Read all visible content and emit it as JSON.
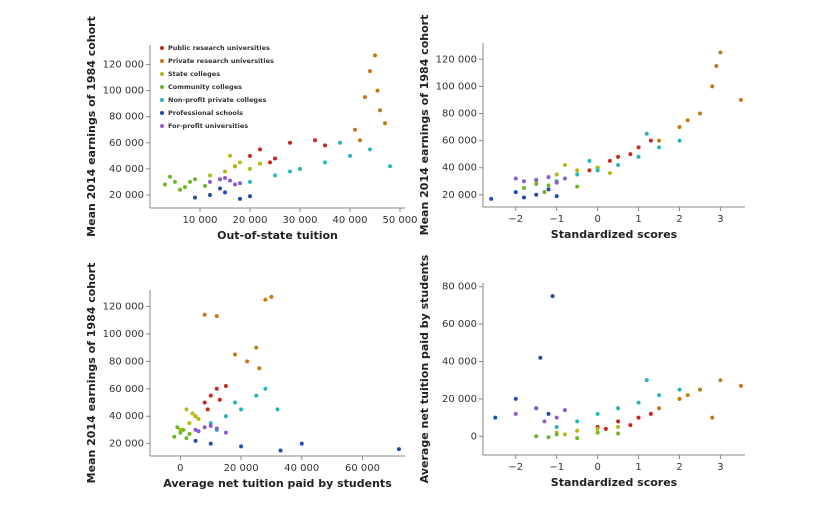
{
  "chart_data": [
    {
      "type": "scatter",
      "xlabel": "Out-of-state tuition",
      "ylabel": "Mean 2014 earnings of 1984 cohort",
      "legend": "top-left",
      "xlim": [
        0,
        51000
      ],
      "ylim": [
        10000,
        135000
      ],
      "xticks": [
        {
          "value": 10000,
          "label": "10 000"
        },
        {
          "value": 20000,
          "label": "20 000"
        },
        {
          "value": 30000,
          "label": "30 000"
        },
        {
          "value": 40000,
          "label": "40 000"
        },
        {
          "value": 50000,
          "label": "50 000"
        }
      ],
      "yticks": [
        {
          "value": 20000,
          "label": "20 000"
        },
        {
          "value": 40000,
          "label": "40 000"
        },
        {
          "value": 60000,
          "label": "60 000"
        },
        {
          "value": 80000,
          "label": "80 000"
        },
        {
          "value": 100000,
          "label": "100 000"
        },
        {
          "value": 120000,
          "label": "120 000"
        }
      ],
      "series": [
        {
          "name": "Public research universities",
          "color": "#c8281e",
          "x": [
            17000,
            20000,
            22000,
            25000,
            28000,
            33000,
            35000,
            24000
          ],
          "values": [
            42000,
            50000,
            55000,
            48000,
            60000,
            62000,
            58000,
            45000
          ]
        },
        {
          "name": "Private research universities",
          "color": "#c27a17",
          "x": [
            41000,
            43000,
            44000,
            45000,
            46000,
            47000,
            45500,
            42000
          ],
          "values": [
            70000,
            95000,
            115000,
            127000,
            85000,
            75000,
            100000,
            62000
          ]
        },
        {
          "name": "State colleges",
          "color": "#b8b814",
          "x": [
            12000,
            15000,
            17000,
            18000,
            20000,
            14000,
            22000,
            16000
          ],
          "values": [
            35000,
            38000,
            42000,
            45000,
            40000,
            32000,
            44000,
            50000
          ]
        },
        {
          "name": "Community colleges",
          "color": "#71b629",
          "x": [
            3000,
            5000,
            7000,
            9000,
            4000,
            11000,
            6000,
            8000
          ],
          "values": [
            28000,
            30000,
            26000,
            32000,
            34000,
            27000,
            24000,
            30000
          ]
        },
        {
          "name": "Non-profit private colleges",
          "color": "#2ab3b8",
          "x": [
            20000,
            25000,
            30000,
            35000,
            40000,
            44000,
            48000,
            28000,
            38000
          ],
          "values": [
            30000,
            35000,
            40000,
            45000,
            50000,
            55000,
            42000,
            38000,
            60000
          ]
        },
        {
          "name": "Professional schools",
          "color": "#2149b0",
          "x": [
            9000,
            12000,
            15000,
            18000,
            14000,
            20000
          ],
          "values": [
            18000,
            20000,
            22000,
            17000,
            25000,
            19000
          ]
        },
        {
          "name": "For-profit universities",
          "color": "#8c5bd2",
          "x": [
            12000,
            14000,
            16000,
            18000,
            15000,
            17000
          ],
          "values": [
            30000,
            32000,
            31000,
            29000,
            33000,
            28000
          ]
        }
      ]
    },
    {
      "type": "scatter",
      "xlabel": "Standardized scores",
      "ylabel": "Mean 2014 earnings of 1984 cohort",
      "xlim": [
        -2.8,
        3.6
      ],
      "ylim": [
        11000,
        132000
      ],
      "xticks": [
        {
          "value": -2,
          "label": "−2"
        },
        {
          "value": -1,
          "label": "−1"
        },
        0,
        1,
        2,
        3
      ],
      "yticks": [
        {
          "value": 20000,
          "label": "20 000"
        },
        {
          "value": 40000,
          "label": "40 000"
        },
        {
          "value": 60000,
          "label": "60 000"
        },
        {
          "value": 80000,
          "label": "80 000"
        },
        {
          "value": 100000,
          "label": "100 000"
        },
        {
          "value": 120000,
          "label": "120 000"
        }
      ],
      "series": [
        {
          "color": "#c8281e",
          "x": [
            0,
            0.5,
            1,
            0.8,
            1.3,
            0.3,
            -0.2
          ],
          "values": [
            40000,
            48000,
            55000,
            50000,
            60000,
            45000,
            38000
          ]
        },
        {
          "color": "#c27a17",
          "x": [
            1.5,
            2,
            2.5,
            2.8,
            3,
            3.5,
            2.2,
            2.9
          ],
          "values": [
            60000,
            70000,
            80000,
            100000,
            125000,
            90000,
            75000,
            115000
          ]
        },
        {
          "color": "#b8b814",
          "x": [
            -1.5,
            -1,
            -0.5,
            0,
            -0.8,
            0.3
          ],
          "values": [
            30000,
            35000,
            38000,
            40000,
            42000,
            36000
          ]
        },
        {
          "color": "#71b629",
          "x": [
            -1.8,
            -1.5,
            -1.2,
            -1,
            -0.5,
            -1.3
          ],
          "values": [
            25000,
            28000,
            27000,
            30000,
            26000,
            22000
          ]
        },
        {
          "color": "#2ab3b8",
          "x": [
            -1,
            -0.5,
            0,
            0.5,
            1,
            1.5,
            2,
            -0.2,
            1.2
          ],
          "values": [
            30000,
            35000,
            38000,
            42000,
            48000,
            55000,
            60000,
            45000,
            65000
          ]
        },
        {
          "color": "#2149b0",
          "x": [
            -2.6,
            -2,
            -1.8,
            -1.5,
            -1.2,
            -1
          ],
          "values": [
            17000,
            22000,
            18000,
            20000,
            24000,
            19000
          ]
        },
        {
          "color": "#8c5bd2",
          "x": [
            -2,
            -1.8,
            -1.5,
            -1.2,
            -1,
            -0.8
          ],
          "values": [
            32000,
            30000,
            31000,
            33000,
            29000,
            32000
          ]
        }
      ]
    },
    {
      "type": "scatter",
      "xlabel": "Average net tuition paid by students",
      "ylabel": "Mean 2014 earnings of 1984 cohort",
      "xlim": [
        -10000,
        74000
      ],
      "ylim": [
        11000,
        132000
      ],
      "xticks": [
        0,
        {
          "value": 20000,
          "label": "20 000"
        },
        {
          "value": 40000,
          "label": "40 000"
        },
        {
          "value": 60000,
          "label": "60 000"
        }
      ],
      "yticks": [
        {
          "value": 20000,
          "label": "20 000"
        },
        {
          "value": 40000,
          "label": "40 000"
        },
        {
          "value": 60000,
          "label": "60 000"
        },
        {
          "value": 80000,
          "label": "80 000"
        },
        {
          "value": 100000,
          "label": "100 000"
        },
        {
          "value": 120000,
          "label": "120 000"
        }
      ],
      "series": [
        {
          "color": "#c8281e",
          "x": [
            5000,
            8000,
            10000,
            12000,
            15000,
            9000,
            13000
          ],
          "values": [
            40000,
            50000,
            55000,
            60000,
            62000,
            45000,
            52000
          ]
        },
        {
          "color": "#c27a17",
          "x": [
            8000,
            12000,
            18000,
            22000,
            25000,
            28000,
            30000,
            26000
          ],
          "values": [
            114000,
            113000,
            85000,
            80000,
            90000,
            125000,
            127000,
            75000
          ]
        },
        {
          "color": "#b8b814",
          "x": [
            0,
            3000,
            5000,
            2000,
            6000,
            4000
          ],
          "values": [
            30000,
            35000,
            40000,
            45000,
            38000,
            42000
          ]
        },
        {
          "color": "#71b629",
          "x": [
            -2000,
            0,
            1000,
            2000,
            -1000,
            3000
          ],
          "values": [
            25000,
            28000,
            30000,
            24000,
            32000,
            27000
          ]
        },
        {
          "color": "#2ab3b8",
          "x": [
            10000,
            15000,
            20000,
            25000,
            18000,
            28000,
            32000,
            12000
          ],
          "values": [
            35000,
            40000,
            45000,
            55000,
            50000,
            60000,
            45000,
            30000
          ]
        },
        {
          "color": "#2149b0",
          "x": [
            5000,
            10000,
            20000,
            33000,
            40000,
            72000
          ],
          "values": [
            22000,
            20000,
            18000,
            15000,
            20000,
            16000
          ]
        },
        {
          "color": "#8c5bd2",
          "x": [
            5000,
            8000,
            12000,
            15000,
            10000,
            6000
          ],
          "values": [
            30000,
            32000,
            31000,
            28000,
            33000,
            29000
          ]
        }
      ]
    },
    {
      "type": "scatter",
      "xlabel": "Standardized scores",
      "ylabel": "Average net tuition paid by students",
      "xlim": [
        -2.8,
        3.6
      ],
      "ylim": [
        -10000,
        82000
      ],
      "xticks": [
        {
          "value": -2,
          "label": "−2"
        },
        {
          "value": -1,
          "label": "−1"
        },
        0,
        1,
        2,
        3
      ],
      "yticks": [
        0,
        {
          "value": 20000,
          "label": "20 000"
        },
        {
          "value": 40000,
          "label": "40 000"
        },
        {
          "value": 60000,
          "label": "60 000"
        },
        {
          "value": 80000,
          "label": "80 000"
        }
      ],
      "series": [
        {
          "color": "#c8281e",
          "x": [
            0,
            0.5,
            1,
            1.3,
            0.8,
            0.2
          ],
          "values": [
            5000,
            8000,
            10000,
            12000,
            6000,
            4000
          ]
        },
        {
          "color": "#c27a17",
          "x": [
            1.5,
            2,
            2.5,
            3,
            3.5,
            2.8,
            2.2
          ],
          "values": [
            15000,
            20000,
            25000,
            30000,
            27000,
            10000,
            22000
          ]
        },
        {
          "color": "#b8b814",
          "x": [
            -1,
            -0.5,
            0,
            0.5,
            -0.8
          ],
          "values": [
            2000,
            3000,
            4000,
            5000,
            1000
          ]
        },
        {
          "color": "#71b629",
          "x": [
            -1.5,
            -1,
            -0.5,
            0,
            0.5,
            -1.2
          ],
          "values": [
            0,
            1000,
            -1000,
            2000,
            1500,
            -500
          ]
        },
        {
          "color": "#2ab3b8",
          "x": [
            -1,
            -0.5,
            0,
            0.5,
            1,
            1.5,
            2,
            1.2
          ],
          "values": [
            5000,
            8000,
            12000,
            15000,
            18000,
            22000,
            25000,
            30000
          ]
        },
        {
          "color": "#2149b0",
          "x": [
            -2.5,
            -2,
            -1.5,
            -1.2,
            -1.1,
            -1.4
          ],
          "values": [
            10000,
            20000,
            15000,
            12000,
            75000,
            42000
          ]
        },
        {
          "color": "#8c5bd2",
          "x": [
            -2,
            -1.5,
            -1,
            -0.8,
            -1.3
          ],
          "values": [
            12000,
            15000,
            10000,
            14000,
            8000
          ]
        }
      ]
    }
  ]
}
